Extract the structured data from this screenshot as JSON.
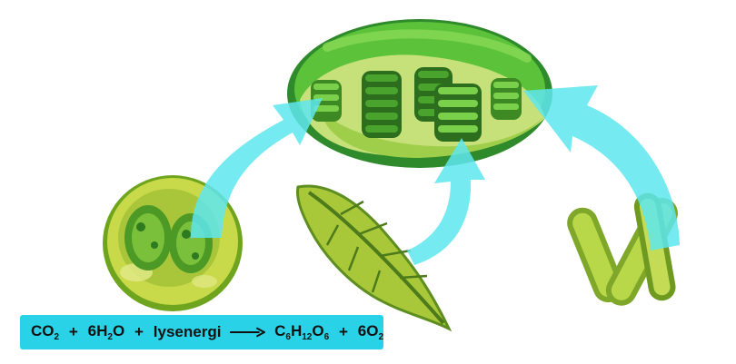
{
  "equation": {
    "reactant_1": "CO",
    "reactant_1_sub": "2",
    "plus_1": "+",
    "reactant_2_coef": "6H",
    "reactant_2_sub": "2",
    "reactant_2_rest": "O",
    "plus_2": "+",
    "reactant_3": "lysenergi",
    "product_1_a": "C",
    "product_1_sub_a": "6",
    "product_1_b": "H",
    "product_1_sub_b": "12",
    "product_1_c": "O",
    "product_1_sub_c": "6",
    "plus_3": "+",
    "product_2": "6O",
    "product_2_sub": "2"
  },
  "illustrations": {
    "top": "chloroplast",
    "left": "plant-cell",
    "middle": "leaf",
    "right": "algae-filaments"
  },
  "colors": {
    "arrow": "#5ee6ee",
    "equation_box": "#29d2e6",
    "dark_green": "#2d7a1f",
    "mid_green": "#5eb82f",
    "light_green": "#b8d84a"
  }
}
